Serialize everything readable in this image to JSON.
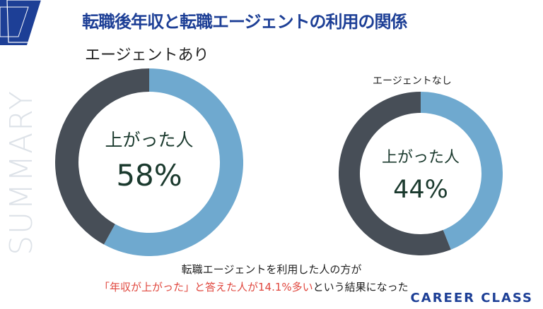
{
  "title": "転職後年収と転職エージェントの利用の関係",
  "watermark": "SUMMARY",
  "colors": {
    "accent": "#6fa9cf",
    "remainder": "#474e57",
    "title": "#1d3f96",
    "highlight": "#e0473e"
  },
  "chart_data": [
    {
      "type": "pie",
      "title": "エージェントあり",
      "center_label": "上がった人",
      "value_label": "58%",
      "slices": [
        {
          "label": "上がった人",
          "value": 58
        },
        {
          "label": "",
          "value": 42
        }
      ]
    },
    {
      "type": "pie",
      "title": "エージェントなし",
      "center_label": "上がった人",
      "value_label": "44%",
      "slices": [
        {
          "label": "上がった人",
          "value": 44
        },
        {
          "label": "",
          "value": 56
        }
      ]
    }
  ],
  "caption": {
    "line1": "転職エージェントを利用した人の方が",
    "line2_highlight": "「年収が上がった」と答えた人が14.1%多い",
    "line2_rest": "という結果になった"
  },
  "brand": "CAREER CLASS"
}
